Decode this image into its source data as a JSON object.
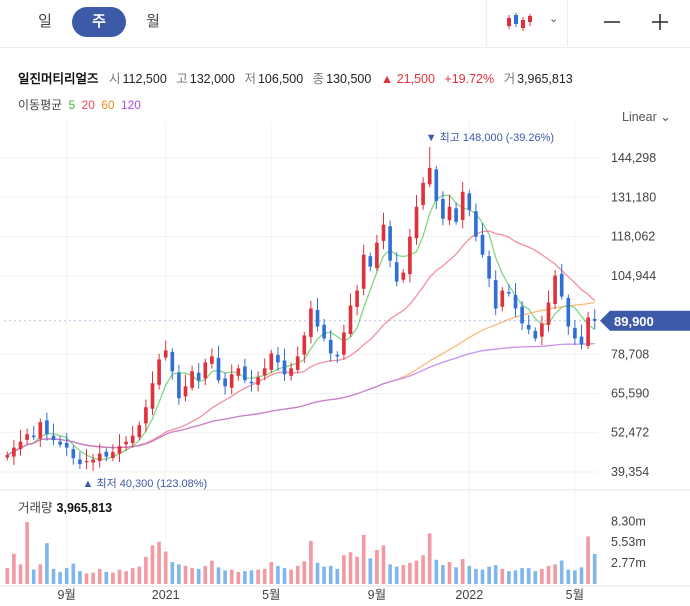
{
  "tabs": [
    {
      "label": "일",
      "active": false
    },
    {
      "label": "주",
      "active": true
    },
    {
      "label": "월",
      "active": false
    }
  ],
  "toolbar": {
    "chart_type_icon": "candlestick-icon",
    "dropdown_icon": "chevron-down-icon",
    "zoom_out_icon": "minus-icon",
    "zoom_in_icon": "plus-icon"
  },
  "quote": {
    "name": "일진머티리얼즈",
    "open_label": "시",
    "open": "112,500",
    "high_label": "고",
    "high": "132,000",
    "low_label": "저",
    "low": "106,500",
    "close_label": "종",
    "close": "130,500",
    "change_arrow": "▲",
    "change": "21,500",
    "change_pct": "+19.72%",
    "volume_label": "거",
    "volume": "3,965,813"
  },
  "ma_legend": {
    "label": "이동평균",
    "periods": [
      "5",
      "20",
      "60",
      "120"
    ],
    "colors": [
      "#5bc85b",
      "#ee6b7d",
      "#f5a34b",
      "#b56ee8"
    ]
  },
  "scale": {
    "label": "Linear",
    "icon": "chevron-down-icon"
  },
  "colors": {
    "up": "#e0303b",
    "down": "#2f6fd6",
    "accent": "#3d5aa8",
    "vol_up": "#f29aa1",
    "vol_down": "#7fb6ec"
  },
  "volume_panel": {
    "label": "거래량",
    "value": "3,965,813"
  },
  "chart_data": {
    "type": "candlestick",
    "interval": "weekly",
    "x_tick_labels": [
      "9월",
      "2021",
      "5월",
      "9월",
      "2022",
      "5월"
    ],
    "x_tick_weeks": [
      9,
      24,
      40,
      56,
      70,
      86
    ],
    "y_tick_labels": [
      "144,298",
      "131,180",
      "118,062",
      "104,944",
      "78,708",
      "65,590",
      "52,472",
      "39,354"
    ],
    "y_tick_values": [
      144298,
      131180,
      118062,
      104944,
      78708,
      65590,
      52472,
      39354
    ],
    "ylim": [
      34000,
      153000
    ],
    "last_price": 89900,
    "last_price_label": "89,900",
    "max_marker": {
      "week": 64,
      "value": 148000,
      "label": "▼ 최고 148,000 (-39.26%)"
    },
    "min_marker": {
      "week": 12,
      "value": 40300,
      "label": "▲ 최저 40,300 (123.08%)"
    },
    "closes": [
      45000,
      47500,
      49500,
      52000,
      51000,
      56000,
      52000,
      50000,
      48500,
      47500,
      44000,
      42000,
      43000,
      43500,
      45500,
      44500,
      46000,
      48000,
      49500,
      51500,
      55000,
      61000,
      69000,
      77000,
      80000,
      73000,
      64000,
      68000,
      73000,
      70000,
      76000,
      78000,
      70000,
      68000,
      72000,
      74000,
      70000,
      69000,
      71000,
      74000,
      79000,
      76000,
      72000,
      74000,
      78000,
      85000,
      94000,
      88000,
      84000,
      79000,
      78000,
      86000,
      95000,
      100000,
      112000,
      108000,
      116000,
      122000,
      110000,
      103000,
      106000,
      118000,
      128000,
      136000,
      141000,
      130000,
      124000,
      128000,
      123000,
      133000,
      127000,
      118000,
      112000,
      104000,
      94000,
      100000,
      99000,
      94000,
      89000,
      87000,
      84000,
      89000,
      96000,
      105000,
      98000,
      88000,
      84000,
      82000,
      91000,
      89900
    ],
    "volume_axis": {
      "tick_labels": [
        "8.30m",
        "5.53m",
        "2.77m"
      ],
      "tick_values": [
        8300000,
        5530000,
        2770000
      ],
      "max": 9000000
    },
    "volumes": [
      2.1,
      4.0,
      2.6,
      8.2,
      1.9,
      2.6,
      5.4,
      2.0,
      1.6,
      2.1,
      2.7,
      1.7,
      1.4,
      1.5,
      2.0,
      1.6,
      1.5,
      1.9,
      1.7,
      2.1,
      2.3,
      3.6,
      5.1,
      5.6,
      4.3,
      2.9,
      2.6,
      2.4,
      2.1,
      2.0,
      2.4,
      3.1,
      2.2,
      1.8,
      1.9,
      1.6,
      1.7,
      1.8,
      1.9,
      2.0,
      2.9,
      2.4,
      2.1,
      1.9,
      2.4,
      3.0,
      5.7,
      2.8,
      2.3,
      2.4,
      2.0,
      3.8,
      4.2,
      3.6,
      6.5,
      3.4,
      4.5,
      5.1,
      2.6,
      2.3,
      2.5,
      2.8,
      3.1,
      3.8,
      6.7,
      3.2,
      2.5,
      2.9,
      2.2,
      3.3,
      2.4,
      2.0,
      1.9,
      2.3,
      2.5,
      2.0,
      1.7,
      1.8,
      2.1,
      2.1,
      1.7,
      2.0,
      2.4,
      2.6,
      3.1,
      1.9,
      1.8,
      2.2,
      6.3,
      3.97
    ]
  }
}
